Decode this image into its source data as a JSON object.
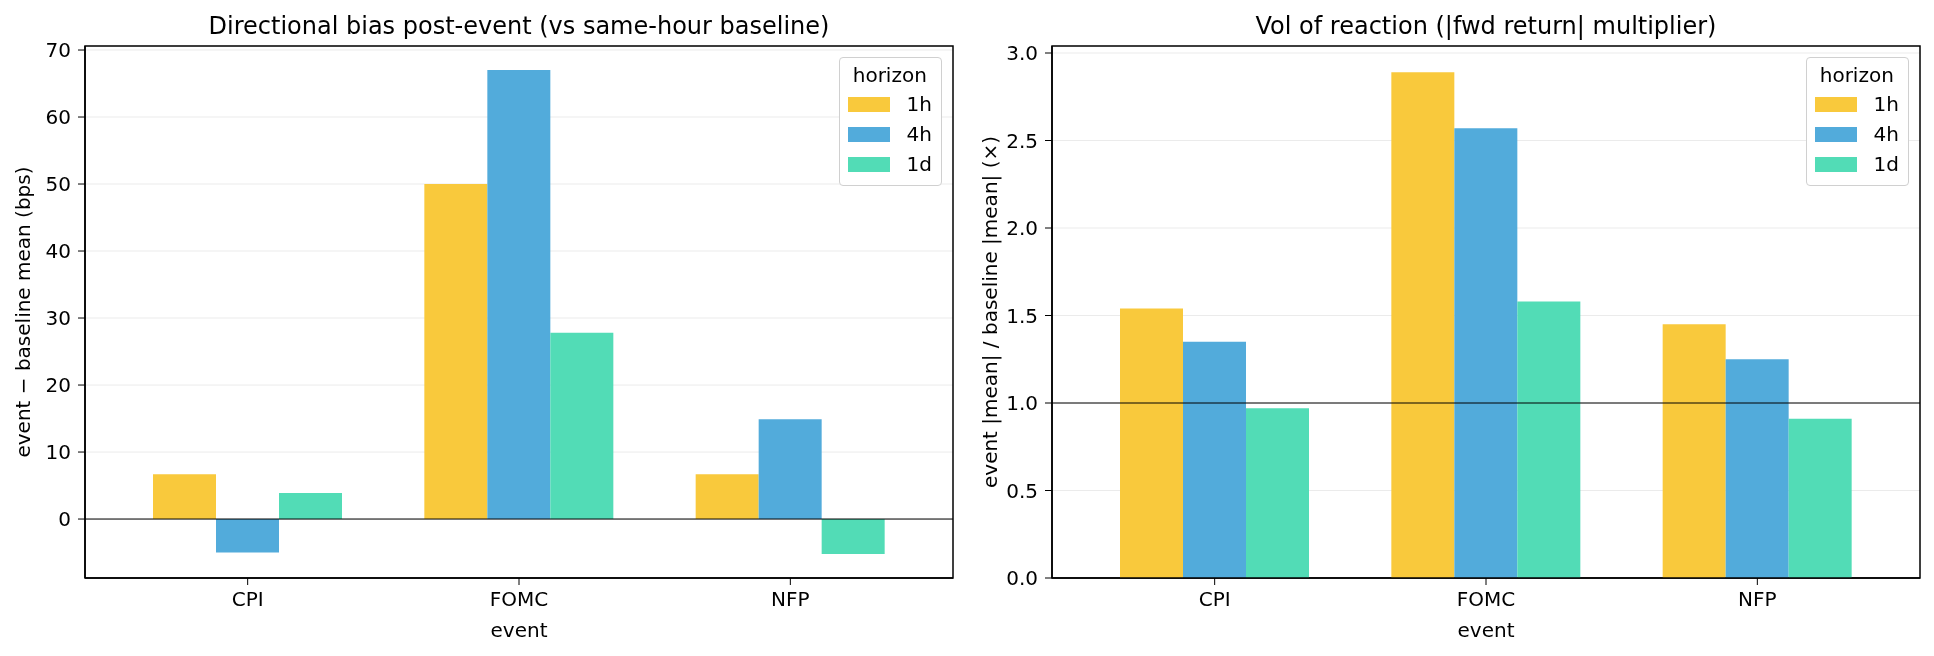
{
  "chart_data": [
    {
      "type": "bar",
      "title": "Directional bias post-event (vs same-hour baseline)",
      "xlabel": "event",
      "ylabel": "event − baseline mean (bps)",
      "legend_title": "horizon",
      "categories": [
        "CPI",
        "FOMC",
        "NFP"
      ],
      "series": [
        {
          "name": "1h",
          "color": "#f9c93c",
          "values": [
            6.7,
            50,
            6.7
          ]
        },
        {
          "name": "4h",
          "color": "#52abdb",
          "values": [
            -5.0,
            67,
            14.9
          ]
        },
        {
          "name": "1d",
          "color": "#52dcb6",
          "values": [
            3.9,
            27.8,
            -5.2
          ]
        }
      ],
      "ylim": [
        -8.8,
        70.6
      ],
      "yticks": [
        0,
        10,
        20,
        30,
        40,
        50,
        60,
        70
      ],
      "grid": "y",
      "legend": "top right",
      "ref_lines": [
        {
          "axis": "y",
          "value": 0,
          "color": "#000000"
        }
      ]
    },
    {
      "type": "bar",
      "title": "Vol of reaction (|fwd return| multiplier)",
      "xlabel": "event",
      "ylabel": "event |mean| / baseline |mean| (×)",
      "legend_title": "horizon",
      "categories": [
        "CPI",
        "FOMC",
        "NFP"
      ],
      "series": [
        {
          "name": "1h",
          "color": "#f9c93c",
          "values": [
            1.54,
            2.89,
            1.45
          ]
        },
        {
          "name": "4h",
          "color": "#52abdb",
          "values": [
            1.35,
            2.57,
            1.25
          ]
        },
        {
          "name": "1d",
          "color": "#52dcb6",
          "values": [
            0.97,
            1.58,
            0.91
          ]
        }
      ],
      "ylim": [
        0,
        3.04
      ],
      "yticks": [
        {
          "value": 0,
          "label": "0.0"
        },
        0.5,
        {
          "value": 1,
          "label": "1.0"
        },
        1.5,
        {
          "value": 2,
          "label": "2.0"
        },
        2.5,
        {
          "value": 3,
          "label": "3.0"
        }
      ],
      "grid": "y",
      "legend": "top right",
      "ref_lines": [
        {
          "axis": "y",
          "value": 1,
          "color": "#000000"
        }
      ]
    }
  ]
}
